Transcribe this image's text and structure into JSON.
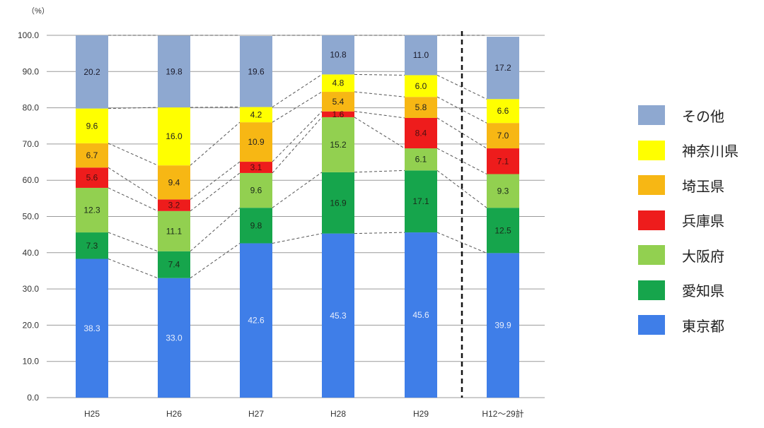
{
  "chart_data": {
    "type": "bar",
    "stacked": true,
    "unit_label": "（%）",
    "categories": [
      "H25",
      "H26",
      "H27",
      "H28",
      "H29",
      "H12～29計"
    ],
    "ylim": [
      0,
      100
    ],
    "yticks": [
      "0.0",
      "10.0",
      "20.0",
      "30.0",
      "40.0",
      "50.0",
      "60.0",
      "70.0",
      "80.0",
      "90.0",
      "100.0"
    ],
    "grid": true,
    "legend_position": "right",
    "series": [
      {
        "name": "東京都",
        "color": "#3F7EE8",
        "text_color": "#e8eefc",
        "values": [
          38.3,
          33.0,
          42.6,
          45.3,
          45.6,
          39.9
        ],
        "labels": [
          "38.3",
          "33.0",
          "42.6",
          "45.3",
          "45.6",
          "39.9"
        ]
      },
      {
        "name": "愛知県",
        "color": "#16A54C",
        "text_color": "#1a2a1a",
        "values": [
          7.3,
          7.4,
          9.8,
          16.9,
          17.1,
          12.5
        ],
        "labels": [
          "7.3",
          "7.4",
          "9.8",
          "16.9",
          "17.1",
          "12.5"
        ]
      },
      {
        "name": "大阪府",
        "color": "#92D050",
        "text_color": "#1a2a1a",
        "values": [
          12.3,
          11.1,
          9.6,
          15.2,
          6.1,
          9.3
        ],
        "labels": [
          "12.3",
          "11.1",
          "9.6",
          "15.2",
          "6.1",
          "9.3"
        ]
      },
      {
        "name": "兵庫県",
        "color": "#EE1C1C",
        "text_color": "#4a1010",
        "values": [
          5.6,
          3.2,
          3.1,
          1.6,
          8.4,
          7.1
        ],
        "labels": [
          "5.6",
          "3.2",
          "3.1",
          "1.6",
          "8.4",
          "7.1"
        ]
      },
      {
        "name": "埼玉県",
        "color": "#F7B714",
        "text_color": "#222222",
        "values": [
          6.7,
          9.4,
          10.9,
          5.4,
          5.8,
          7.0
        ],
        "labels": [
          "6.7",
          "9.4",
          "10.9",
          "5.4",
          "5.8",
          "7.0"
        ]
      },
      {
        "name": "神奈川県",
        "color": "#FFFF00",
        "text_color": "#222222",
        "values": [
          9.6,
          16.0,
          4.2,
          4.8,
          6.0,
          6.6
        ],
        "labels": [
          "9.6",
          "16.0",
          "4.2",
          "4.8",
          "6.0",
          "6.6"
        ]
      },
      {
        "name": "その他",
        "color": "#8EA8D0",
        "text_color": "#1a1a2a",
        "values": [
          20.2,
          19.8,
          19.6,
          10.8,
          11.0,
          17.2
        ],
        "labels": [
          "20.2",
          "19.8",
          "19.6",
          "10.8",
          "11.0",
          "17.2"
        ]
      }
    ],
    "separator_before_category": "H12～29計"
  },
  "legend": {
    "items": [
      {
        "label": "その他",
        "color": "#8EA8D0"
      },
      {
        "label": "神奈川県",
        "color": "#FFFF00"
      },
      {
        "label": "埼玉県",
        "color": "#F7B714"
      },
      {
        "label": "兵庫県",
        "color": "#EE1C1C"
      },
      {
        "label": "大阪府",
        "color": "#92D050"
      },
      {
        "label": "愛知県",
        "color": "#16A54C"
      },
      {
        "label": "東京都",
        "color": "#3F7EE8"
      }
    ]
  }
}
